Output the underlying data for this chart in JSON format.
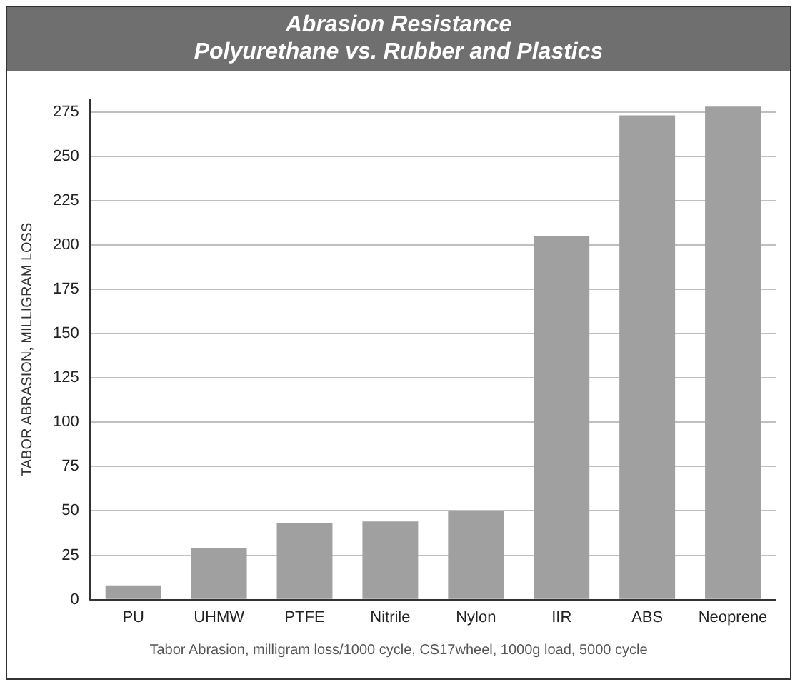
{
  "chart_data": {
    "type": "bar",
    "title": "Abrasion Resistance",
    "subtitle": "Polyurethane vs. Rubber and Plastics",
    "ylabel": "TABOR ABRASION, MILLIGRAM LOSS",
    "categories": [
      "PU",
      "UHMW",
      "PTFE",
      "Nitrile",
      "Nylon",
      "IIR",
      "ABS",
      "Neoprene"
    ],
    "values": [
      8,
      29,
      43,
      44,
      50,
      205,
      273,
      278
    ],
    "color": "#a0a0a0",
    "ylim": [
      0,
      282
    ],
    "yticks": [
      0,
      25,
      50,
      75,
      100,
      125,
      150,
      175,
      200,
      225,
      250,
      275
    ],
    "grid": "y",
    "annotations": [
      "Tabor Abrasion, milligram loss/1000 cycle, CS17wheel, 1000g load, 5000 cycle"
    ]
  }
}
